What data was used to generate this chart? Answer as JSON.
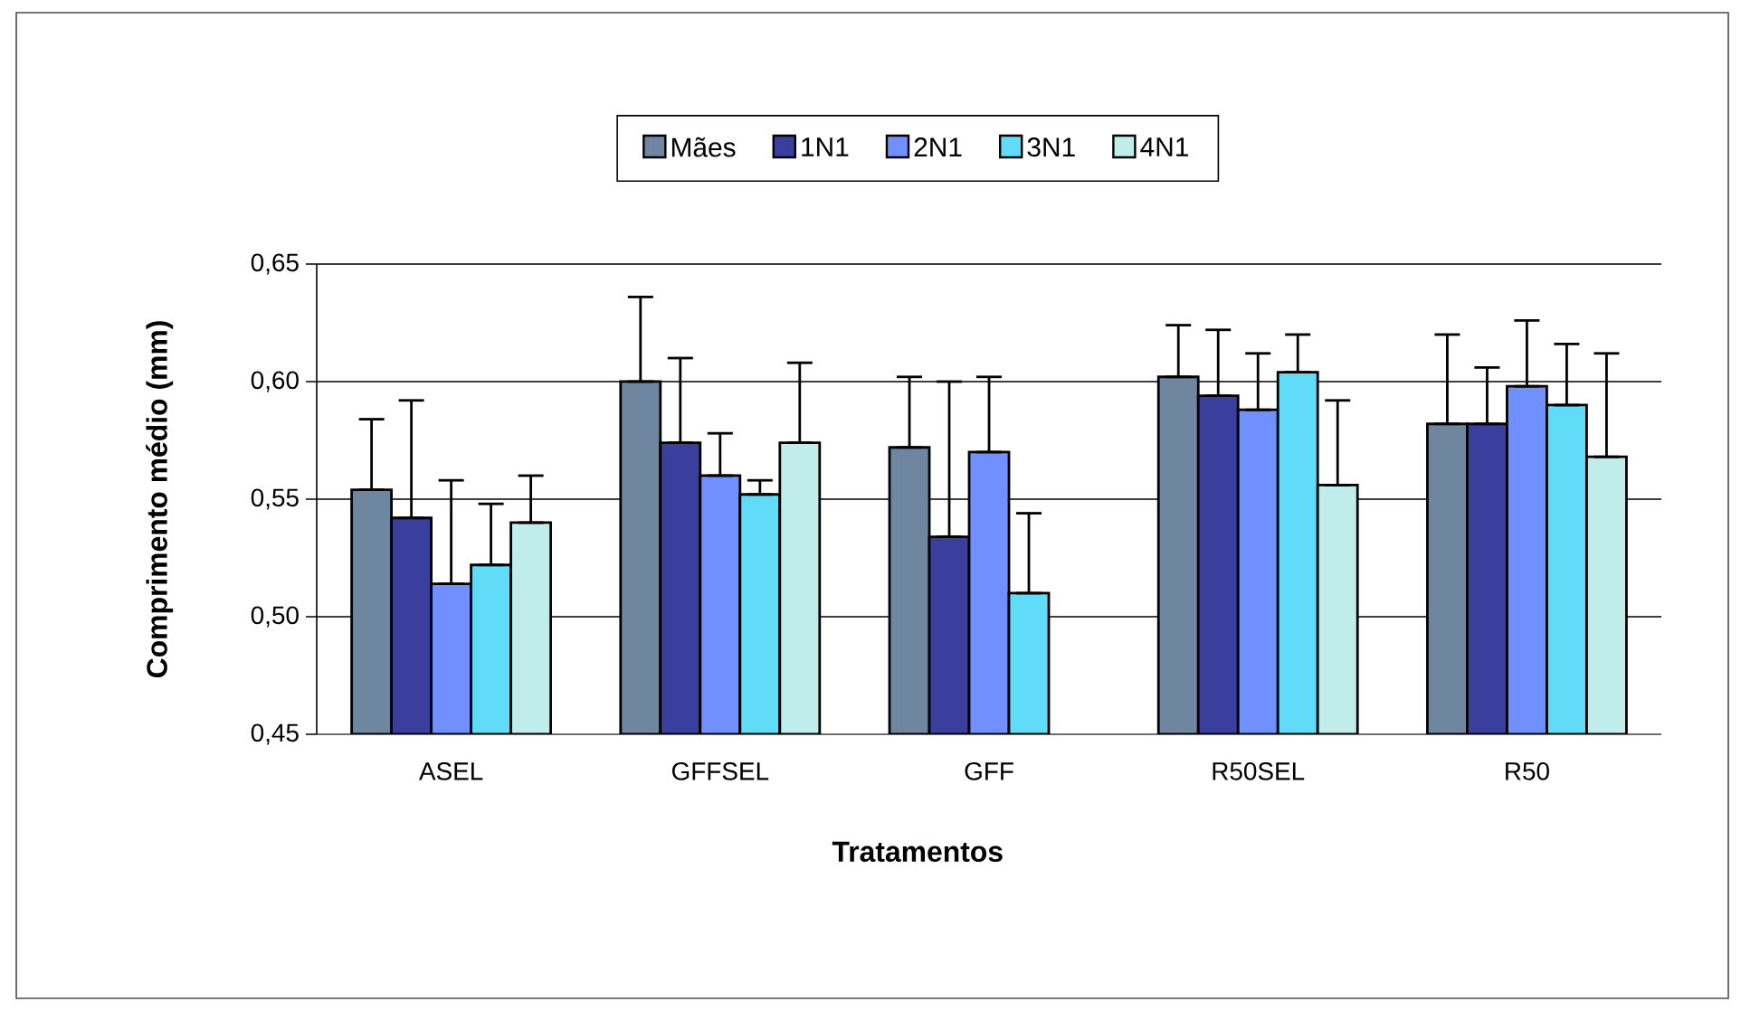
{
  "chart_data": {
    "type": "bar",
    "xlabel": "Tratamentos",
    "ylabel": "Comprimento médio (mm)",
    "categories": [
      "ASEL",
      "GFFSEL",
      "GFF",
      "R50SEL",
      "R50"
    ],
    "series": [
      {
        "name": "Mães",
        "color": "#6f86a0",
        "values": [
          0.554,
          0.6,
          0.572,
          0.602,
          0.582
        ],
        "errors": [
          [
            0.554,
            0.584
          ],
          [
            0.6,
            0.636
          ],
          [
            0.572,
            0.602
          ],
          [
            0.602,
            0.624
          ],
          [
            0.582,
            0.62
          ]
        ]
      },
      {
        "name": "1N1",
        "color": "#3a3f9e",
        "values": [
          0.542,
          0.574,
          0.534,
          0.594,
          0.582
        ],
        "errors": [
          [
            0.542,
            0.592
          ],
          [
            0.574,
            0.61
          ],
          [
            0.534,
            0.6
          ],
          [
            0.594,
            0.622
          ],
          [
            0.582,
            0.606
          ]
        ]
      },
      {
        "name": "2N1",
        "color": "#7090ff",
        "values": [
          0.514,
          0.56,
          0.57,
          0.588,
          0.598
        ],
        "errors": [
          [
            0.514,
            0.558
          ],
          [
            0.56,
            0.578
          ],
          [
            0.57,
            0.602
          ],
          [
            0.588,
            0.612
          ],
          [
            0.598,
            0.626
          ]
        ]
      },
      {
        "name": "3N1",
        "color": "#60dcf8",
        "values": [
          0.522,
          0.552,
          0.51,
          0.604,
          0.59
        ],
        "errors": [
          [
            0.522,
            0.548
          ],
          [
            0.552,
            0.558
          ],
          [
            0.51,
            0.544
          ],
          [
            0.604,
            0.62
          ],
          [
            0.59,
            0.616
          ]
        ]
      },
      {
        "name": "4N1",
        "color": "#c0ecea",
        "values": [
          0.54,
          0.574,
          null,
          0.556,
          0.568
        ],
        "errors": [
          [
            0.54,
            0.56
          ],
          [
            0.574,
            0.608
          ],
          null,
          [
            0.556,
            0.592
          ],
          [
            0.568,
            0.612
          ]
        ]
      }
    ],
    "ylim": [
      0.45,
      0.65
    ],
    "yticks": [
      {
        "value": 0.45,
        "label": "0,45"
      },
      {
        "value": 0.5,
        "label": "0,50"
      },
      {
        "value": 0.55,
        "label": "0,55"
      },
      {
        "value": 0.6,
        "label": "0,60"
      },
      {
        "value": 0.65,
        "label": "0,65"
      }
    ],
    "grid": "y",
    "legend": "top"
  }
}
